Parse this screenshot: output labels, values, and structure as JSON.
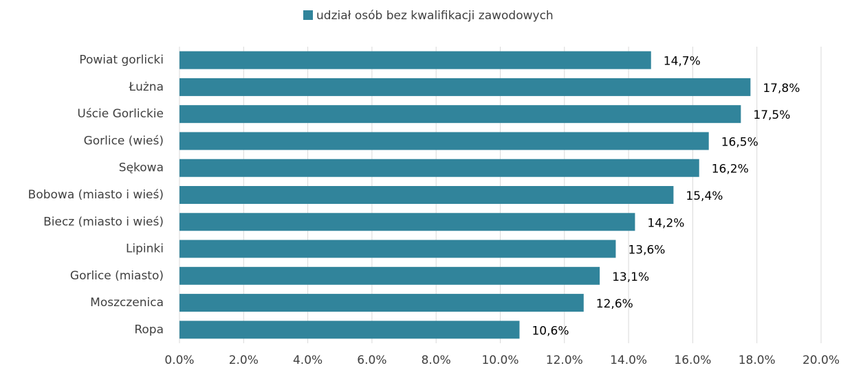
{
  "chart_data": {
    "type": "bar",
    "orientation": "horizontal",
    "categories": [
      "Powiat gorlicki",
      "Łużna",
      "Uście Gorlickie",
      "Gorlice (wieś)",
      "Sękowa",
      "Bobowa (miasto i wieś)",
      "Biecz (miasto i wieś)",
      "Lipinki",
      "Gorlice (miasto)",
      "Moszczenica",
      "Ropa"
    ],
    "series": [
      {
        "name": "udział osób bez kwalifikacji zawodowych",
        "color": "#31849b",
        "values": [
          14.7,
          17.8,
          17.5,
          16.5,
          16.2,
          15.4,
          14.2,
          13.6,
          13.1,
          12.6,
          10.6
        ],
        "value_labels": [
          "14,7%",
          "17,8%",
          "17,5%",
          "16,5%",
          "16,2%",
          "15,4%",
          "14,2%",
          "13,6%",
          "13,1%",
          "12,6%",
          "10,6%"
        ]
      }
    ],
    "xlim": [
      0,
      20
    ],
    "xticks": [
      {
        "value": 0,
        "label": "0.0%"
      },
      {
        "value": 2,
        "label": "2.0%"
      },
      {
        "value": 4,
        "label": "4.0%"
      },
      {
        "value": 6,
        "label": "6.0%"
      },
      {
        "value": 8,
        "label": "8.0%"
      },
      {
        "value": 10,
        "label": "10.0%"
      },
      {
        "value": 12,
        "label": "12.0%"
      },
      {
        "value": 14,
        "label": "14.0%"
      },
      {
        "value": 16,
        "label": "16.0%"
      },
      {
        "value": 18,
        "label": "18.0%"
      },
      {
        "value": 20,
        "label": "20.0%"
      }
    ],
    "grid": true,
    "legend": "top"
  }
}
